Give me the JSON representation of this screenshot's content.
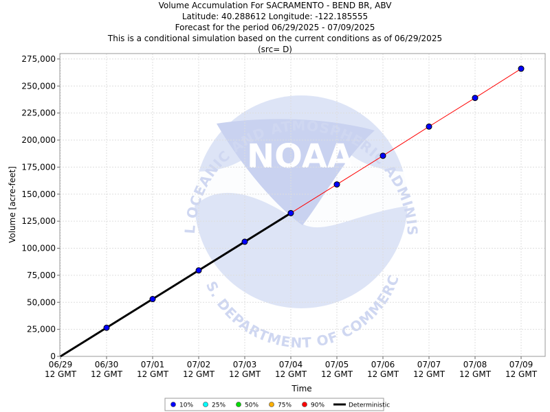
{
  "header": {
    "title": "Volume Accumulation For SACRAMENTO - BEND BR, ABV",
    "location": "Latitude: 40.288612 Longitude: -122.185555",
    "period": "Forecast for the period 06/29/2025 - 07/09/2025",
    "note": "This is a conditional simulation based on the current conditions as of 06/29/2025",
    "source": "(src= D)"
  },
  "watermark": {
    "logo_text": "NOAA",
    "ring_top": "NATIONAL OCEANIC AND ATMOSPHERIC ADMINISTRATION",
    "ring_bottom": "U.S. DEPARTMENT OF COMMERCE",
    "colors": {
      "disc": "#dde4f6",
      "logo": "#c9d2f0"
    }
  },
  "chart_data": {
    "type": "line",
    "xlabel": "Time",
    "ylabel": "Volume [acre-feet]",
    "ylim": [
      0,
      280000
    ],
    "y_ticks": [
      0,
      25000,
      50000,
      75000,
      100000,
      125000,
      150000,
      175000,
      200000,
      225000,
      250000,
      275000
    ],
    "y_tick_labels": [
      "0",
      "25,000",
      "50,000",
      "75,000",
      "100,000",
      "125,000",
      "150,000",
      "175,000",
      "200,000",
      "225,000",
      "250,000",
      "275,000"
    ],
    "x_tick_dates": [
      "06/29",
      "06/30",
      "07/01",
      "07/02",
      "07/03",
      "07/04",
      "07/05",
      "07/06",
      "07/07",
      "07/08",
      "07/09"
    ],
    "x_tick_time": "12 GMT",
    "grid": true,
    "series": [
      {
        "name": "Deterministic",
        "color": "#000000",
        "x": [
          "06/29",
          "06/30",
          "07/01",
          "07/02",
          "07/03",
          "07/04"
        ],
        "values": [
          0,
          26500,
          53000,
          79500,
          106000,
          132500
        ]
      },
      {
        "name": "90%",
        "color": "#ff0000",
        "x": [
          "07/04",
          "07/05",
          "07/06",
          "07/07",
          "07/08",
          "07/09"
        ],
        "values": [
          132500,
          159000,
          185500,
          212500,
          239000,
          266000
        ]
      },
      {
        "name": "10%",
        "color": "#0000ff",
        "marker": "circle",
        "x": [
          "06/30",
          "07/01",
          "07/02",
          "07/03",
          "07/04",
          "07/05",
          "07/06",
          "07/07",
          "07/08",
          "07/09"
        ],
        "values": [
          26500,
          53000,
          79500,
          106000,
          132500,
          159000,
          185500,
          212500,
          239000,
          266000
        ]
      }
    ],
    "legend": {
      "placement": "bottom",
      "items": [
        {
          "label": "10%",
          "color": "#0000ff",
          "kind": "dot"
        },
        {
          "label": "25%",
          "color": "#00ffff",
          "kind": "dot"
        },
        {
          "label": "50%",
          "color": "#00dd00",
          "kind": "dot"
        },
        {
          "label": "75%",
          "color": "#ffb000",
          "kind": "dot"
        },
        {
          "label": "90%",
          "color": "#ff0000",
          "kind": "dot"
        },
        {
          "label": "Deterministic",
          "color": "#000000",
          "kind": "line"
        }
      ]
    }
  }
}
